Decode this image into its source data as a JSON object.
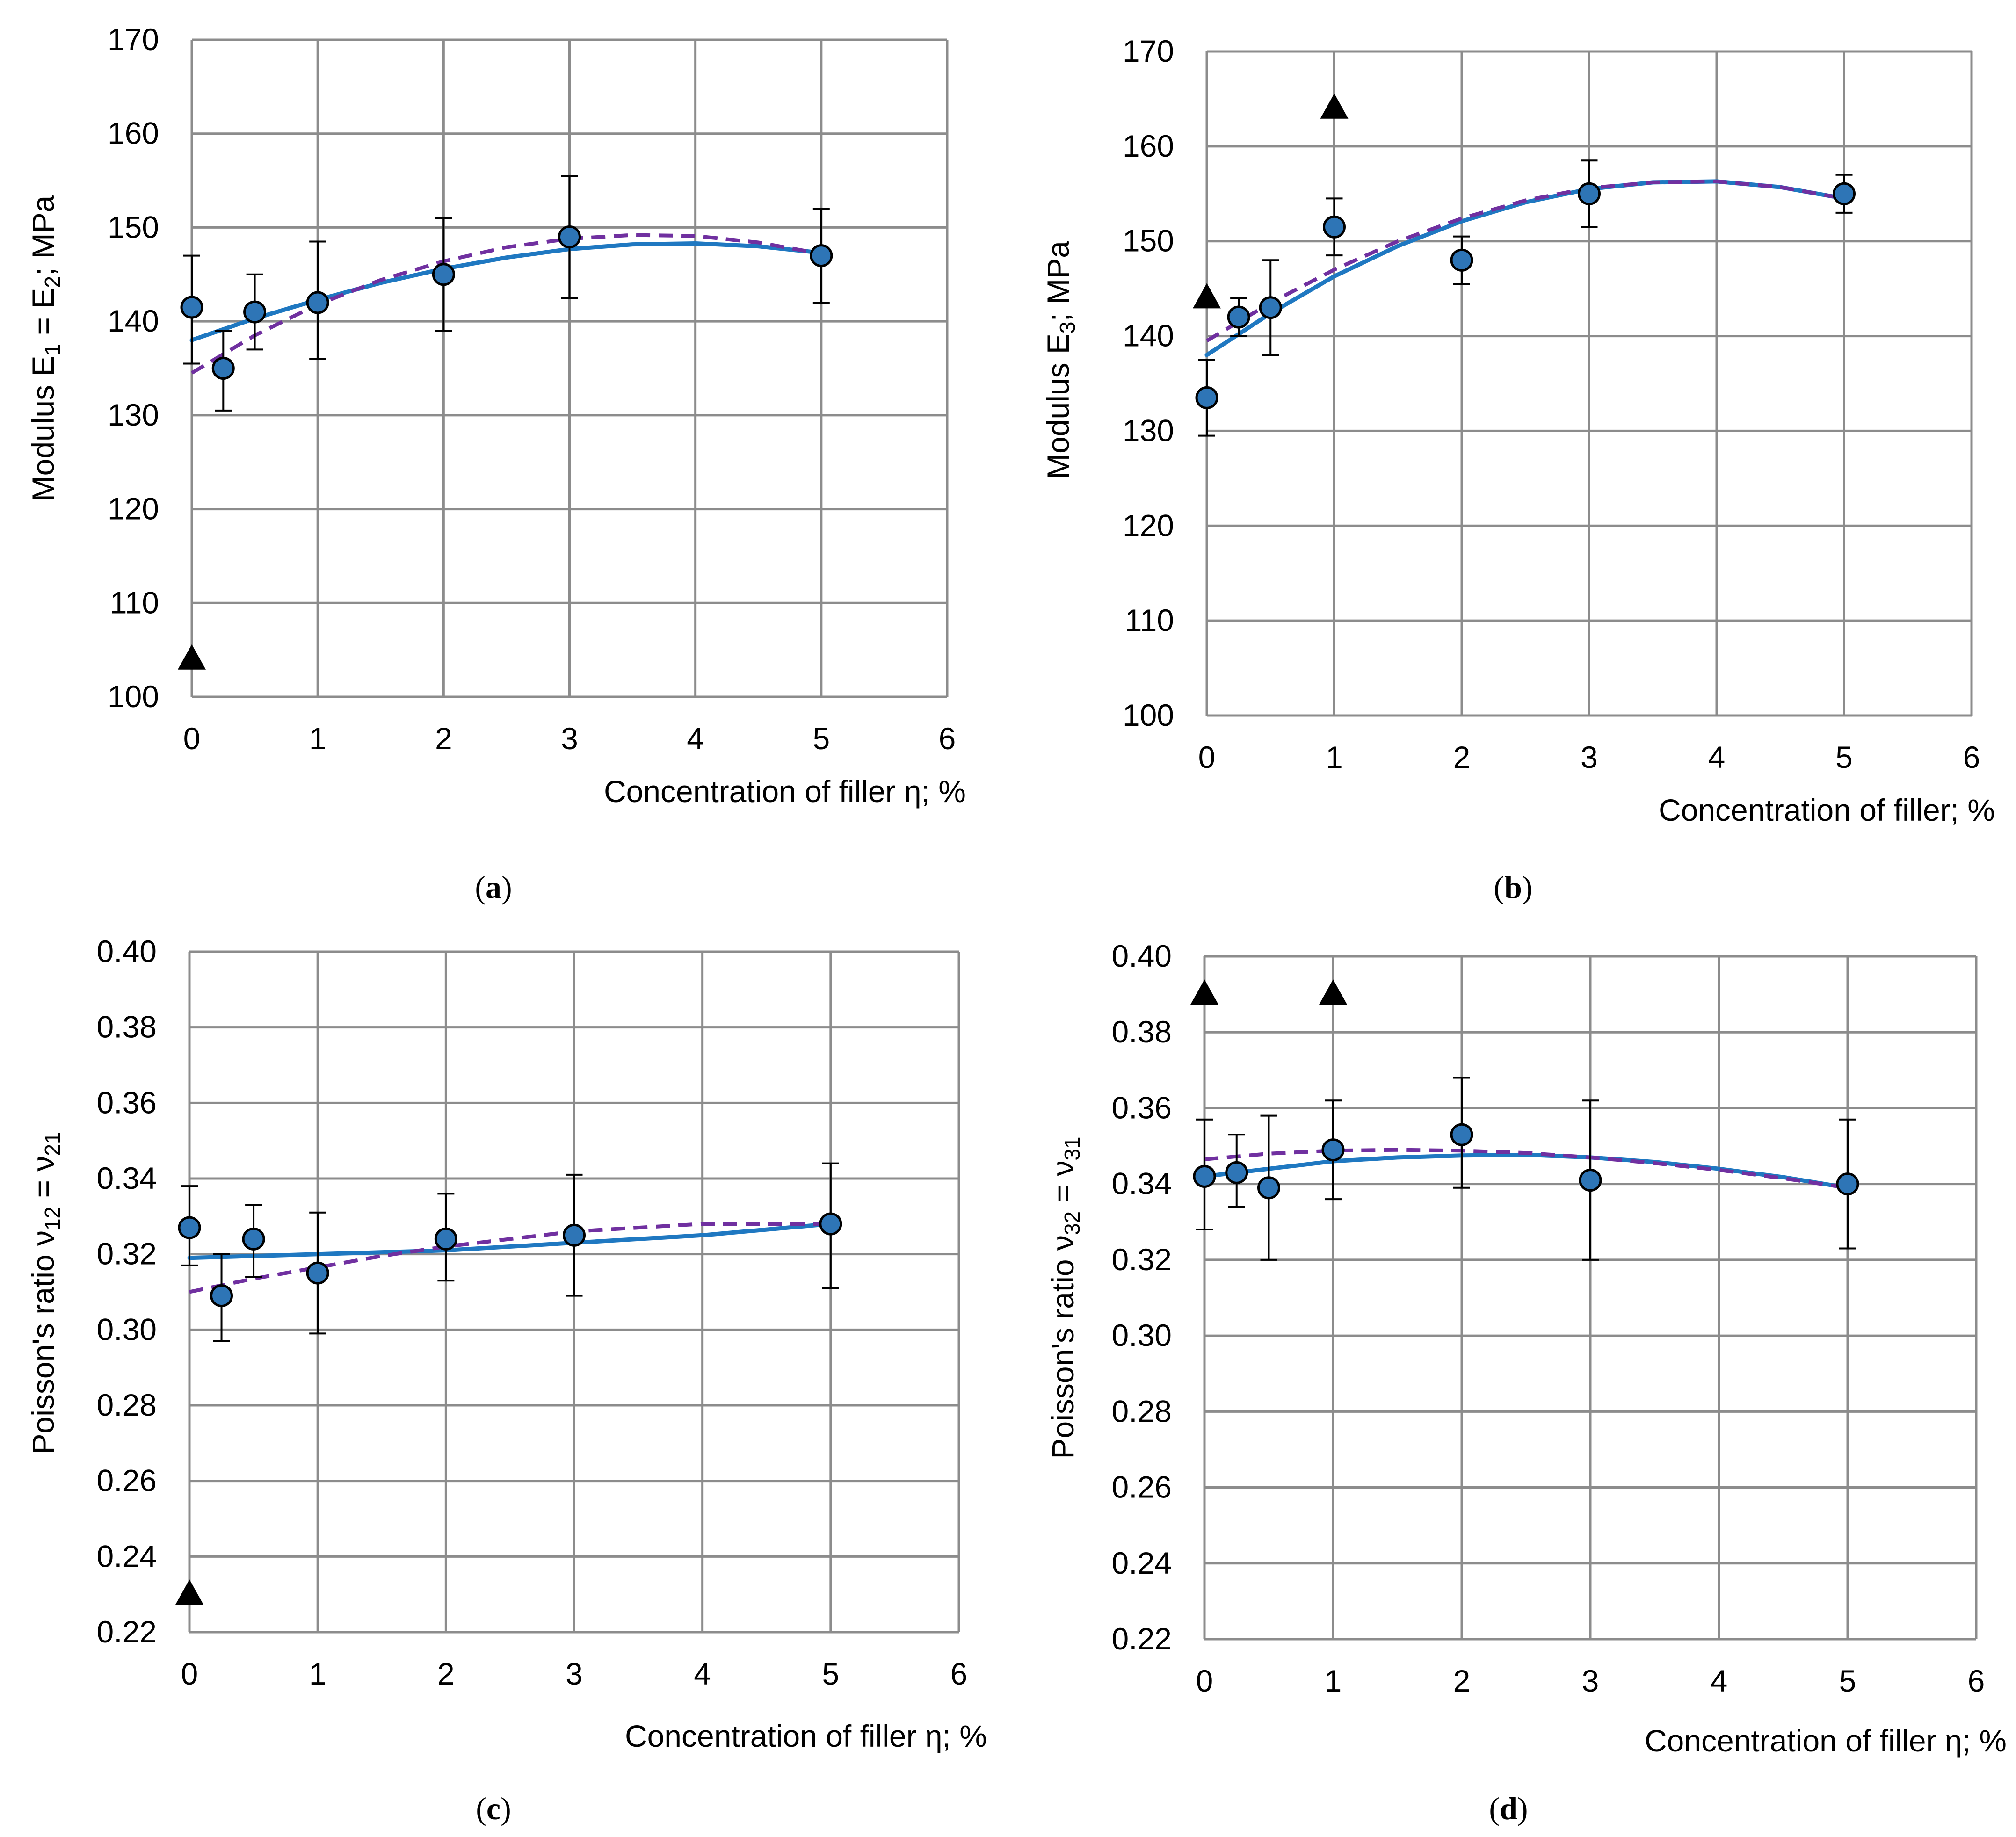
{
  "colors": {
    "grid": "#8c8c8c",
    "marker_fill": "#2e75b6",
    "marker_edge": "#000000",
    "solid_fit": "#1f78c1",
    "dashed_fit": "#7030a0",
    "triangle": "#000000",
    "errorbar": "#000000"
  },
  "chart_data": [
    {
      "panel_label": "a",
      "type": "scatter",
      "xlabel": "Concentration of filler η; %",
      "ylabel": {
        "parts": [
          [
            "Modulus  E",
            ""
          ],
          [
            "1",
            "sub"
          ],
          [
            " = E",
            ""
          ],
          [
            "2",
            "sub"
          ],
          [
            "; MPa",
            ""
          ]
        ]
      },
      "xlim": [
        0,
        6
      ],
      "ylim": [
        100,
        170
      ],
      "xticks": [
        0,
        1,
        2,
        3,
        4,
        5,
        6
      ],
      "yticks": [
        100,
        110,
        120,
        130,
        140,
        150,
        160,
        170
      ],
      "tick_decimals": 0,
      "grid": true,
      "points": [
        {
          "x": 0,
          "y": 141.5,
          "err_lo": 135.5,
          "err_hi": 147
        },
        {
          "x": 0.25,
          "y": 135,
          "err_lo": 130.5,
          "err_hi": 139
        },
        {
          "x": 0.5,
          "y": 141,
          "err_lo": 137,
          "err_hi": 145
        },
        {
          "x": 1,
          "y": 142,
          "err_lo": 136,
          "err_hi": 148.5
        },
        {
          "x": 2,
          "y": 145,
          "err_lo": 139,
          "err_hi": 151
        },
        {
          "x": 3,
          "y": 149,
          "err_lo": 142.5,
          "err_hi": 155.5
        },
        {
          "x": 5,
          "y": 147,
          "err_lo": 142,
          "err_hi": 152
        }
      ],
      "triangles": [
        {
          "x": 0,
          "y": 104
        }
      ],
      "fit_solid": {
        "x": [
          0,
          0.5,
          1,
          1.5,
          2,
          2.5,
          3,
          3.5,
          4,
          4.5,
          5
        ],
        "y": [
          138,
          140.3,
          142.3,
          144.1,
          145.6,
          146.8,
          147.7,
          148.2,
          148.3,
          148,
          147.3
        ]
      },
      "fit_dashed": {
        "x": [
          0,
          0.5,
          1,
          1.5,
          2,
          2.5,
          3,
          3.5,
          4,
          4.5,
          5
        ],
        "y": [
          134.5,
          138.5,
          141.8,
          144.4,
          146.4,
          147.9,
          148.8,
          149.2,
          149.1,
          148.4,
          147.2
        ]
      }
    },
    {
      "panel_label": "b",
      "type": "scatter",
      "xlabel": "Concentration of filler; %",
      "ylabel": {
        "parts": [
          [
            "Modulus E",
            ""
          ],
          [
            "3",
            "sub"
          ],
          [
            "; MPa",
            ""
          ]
        ]
      },
      "xlim": [
        0,
        6
      ],
      "ylim": [
        100,
        170
      ],
      "xticks": [
        0,
        1,
        2,
        3,
        4,
        5,
        6
      ],
      "yticks": [
        100,
        110,
        120,
        130,
        140,
        150,
        160,
        170
      ],
      "tick_decimals": 0,
      "grid": true,
      "points": [
        {
          "x": 0,
          "y": 133.5,
          "err_lo": 129.5,
          "err_hi": 137.5
        },
        {
          "x": 0.25,
          "y": 142,
          "err_lo": 140,
          "err_hi": 144
        },
        {
          "x": 0.5,
          "y": 143,
          "err_lo": 138,
          "err_hi": 148
        },
        {
          "x": 1,
          "y": 151.5,
          "err_lo": 148.5,
          "err_hi": 154.5
        },
        {
          "x": 2,
          "y": 148,
          "err_lo": 145.5,
          "err_hi": 150.5
        },
        {
          "x": 3,
          "y": 155,
          "err_lo": 151.5,
          "err_hi": 158.5
        },
        {
          "x": 5,
          "y": 155,
          "err_lo": 153,
          "err_hi": 157
        }
      ],
      "triangles": [
        {
          "x": 0,
          "y": 144
        },
        {
          "x": 1,
          "y": 164
        }
      ],
      "fit_solid": {
        "x": [
          0,
          0.5,
          1,
          1.5,
          2,
          2.5,
          3,
          3.5,
          4,
          4.5,
          5
        ],
        "y": [
          138,
          142.4,
          146.3,
          149.5,
          152.1,
          154.1,
          155.5,
          156.2,
          156.3,
          155.7,
          154.5
        ]
      },
      "fit_dashed": {
        "x": [
          0,
          0.5,
          1,
          1.5,
          2,
          2.5,
          3,
          3.5,
          4,
          4.5,
          5
        ],
        "y": [
          139.5,
          143.5,
          147,
          150,
          152.4,
          154.3,
          155.6,
          156.2,
          156.3,
          155.7,
          154.5
        ]
      }
    },
    {
      "panel_label": "c",
      "type": "scatter",
      "xlabel": "Concentration of filler η; %",
      "ylabel": {
        "parts": [
          [
            "Poisson's  ratio ν",
            ""
          ],
          [
            "12",
            "sub"
          ],
          [
            " = ν",
            ""
          ],
          [
            "21",
            "sub"
          ]
        ]
      },
      "xlim": [
        0,
        6
      ],
      "ylim": [
        0.22,
        0.4
      ],
      "xticks": [
        0,
        1,
        2,
        3,
        4,
        5,
        6
      ],
      "yticks": [
        0.22,
        0.24,
        0.26,
        0.28,
        0.3,
        0.32,
        0.34,
        0.36,
        0.38,
        0.4
      ],
      "tick_decimals": 2,
      "grid": true,
      "points": [
        {
          "x": 0,
          "y": 0.327,
          "err_lo": 0.317,
          "err_hi": 0.338
        },
        {
          "x": 0.25,
          "y": 0.309,
          "err_lo": 0.297,
          "err_hi": 0.32
        },
        {
          "x": 0.5,
          "y": 0.324,
          "err_lo": 0.314,
          "err_hi": 0.333
        },
        {
          "x": 1,
          "y": 0.315,
          "err_lo": 0.299,
          "err_hi": 0.331
        },
        {
          "x": 2,
          "y": 0.324,
          "err_lo": 0.313,
          "err_hi": 0.336
        },
        {
          "x": 3,
          "y": 0.325,
          "err_lo": 0.309,
          "err_hi": 0.341
        },
        {
          "x": 5,
          "y": 0.328,
          "err_lo": 0.311,
          "err_hi": 0.344
        }
      ],
      "triangles": [
        {
          "x": 0,
          "y": 0.23
        }
      ],
      "fit_solid": {
        "x": [
          0,
          1,
          2,
          3,
          4,
          5
        ],
        "y": [
          0.319,
          0.32,
          0.321,
          0.323,
          0.325,
          0.328
        ]
      },
      "fit_dashed": {
        "x": [
          0,
          0.5,
          1,
          1.5,
          2,
          2.5,
          3,
          3.5,
          4,
          4.5,
          5
        ],
        "y": [
          0.31,
          0.3135,
          0.3165,
          0.3195,
          0.322,
          0.324,
          0.326,
          0.327,
          0.328,
          0.328,
          0.328
        ]
      }
    },
    {
      "panel_label": "d",
      "type": "scatter",
      "xlabel": "Concentration of filler η; %",
      "ylabel": {
        "parts": [
          [
            "Poisson's  ratio ν",
            ""
          ],
          [
            "32",
            "sub"
          ],
          [
            " = ν",
            ""
          ],
          [
            "31",
            "sub"
          ]
        ]
      },
      "xlim": [
        0,
        6
      ],
      "ylim": [
        0.22,
        0.4
      ],
      "xticks": [
        0,
        1,
        2,
        3,
        4,
        5,
        6
      ],
      "yticks": [
        0.22,
        0.24,
        0.26,
        0.28,
        0.3,
        0.32,
        0.34,
        0.36,
        0.38,
        0.4
      ],
      "tick_decimals": 2,
      "grid": true,
      "points": [
        {
          "x": 0,
          "y": 0.342,
          "err_lo": 0.328,
          "err_hi": 0.357
        },
        {
          "x": 0.25,
          "y": 0.343,
          "err_lo": 0.334,
          "err_hi": 0.353
        },
        {
          "x": 0.5,
          "y": 0.339,
          "err_lo": 0.32,
          "err_hi": 0.358
        },
        {
          "x": 1,
          "y": 0.349,
          "err_lo": 0.336,
          "err_hi": 0.362
        },
        {
          "x": 2,
          "y": 0.353,
          "err_lo": 0.339,
          "err_hi": 0.368
        },
        {
          "x": 3,
          "y": 0.341,
          "err_lo": 0.32,
          "err_hi": 0.362
        },
        {
          "x": 5,
          "y": 0.34,
          "err_lo": 0.323,
          "err_hi": 0.357
        }
      ],
      "triangles": [
        {
          "x": 0,
          "y": 0.39
        },
        {
          "x": 1,
          "y": 0.39
        }
      ],
      "fit_solid": {
        "x": [
          0,
          0.5,
          1,
          1.5,
          2,
          2.5,
          3,
          3.5,
          4,
          4.5,
          5
        ],
        "y": [
          0.342,
          0.344,
          0.346,
          0.347,
          0.3475,
          0.3477,
          0.347,
          0.3458,
          0.344,
          0.3418,
          0.339
        ]
      },
      "fit_dashed": {
        "x": [
          0,
          0.5,
          1,
          1.5,
          2,
          2.5,
          3,
          3.5,
          4,
          4.5,
          5
        ],
        "y": [
          0.3465,
          0.348,
          0.3488,
          0.349,
          0.3488,
          0.3482,
          0.347,
          0.3455,
          0.3437,
          0.3415,
          0.339
        ]
      }
    }
  ]
}
